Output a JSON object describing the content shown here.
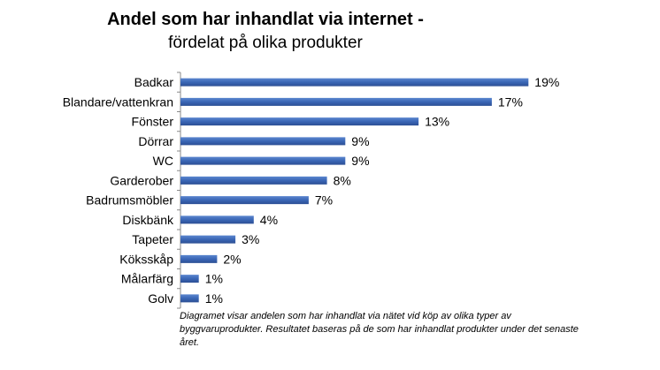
{
  "chart_data": {
    "type": "bar",
    "orientation": "horizontal",
    "title": "Andel som har inhandlat via internet -",
    "subtitle": "fördelat på olika produkter",
    "categories": [
      "Badkar",
      "Blandare/vattenkran",
      "Fönster",
      "Dörrar",
      "WC",
      "Garderober",
      "Badrumsmöbler",
      "Diskbänk",
      "Tapeter",
      "Köksskåp",
      "Målarfärg",
      "Golv"
    ],
    "values": [
      19,
      17,
      13,
      9,
      9,
      8,
      7,
      4,
      3,
      2,
      1,
      1
    ],
    "value_labels": [
      "19%",
      "17%",
      "13%",
      "9%",
      "9%",
      "8%",
      "7%",
      "4%",
      "3%",
      "2%",
      "1%",
      "1%"
    ],
    "unit": "%",
    "xlim": [
      0,
      25
    ],
    "color": "#3a66b5",
    "grid": false,
    "legend": "none"
  },
  "caption": "Diagramet visar andelen som har inhandlat via nätet vid köp av olika typer av byggvaruprodukter.  Resultatet baseras på de som har inhandlat produkter under det senaste året."
}
